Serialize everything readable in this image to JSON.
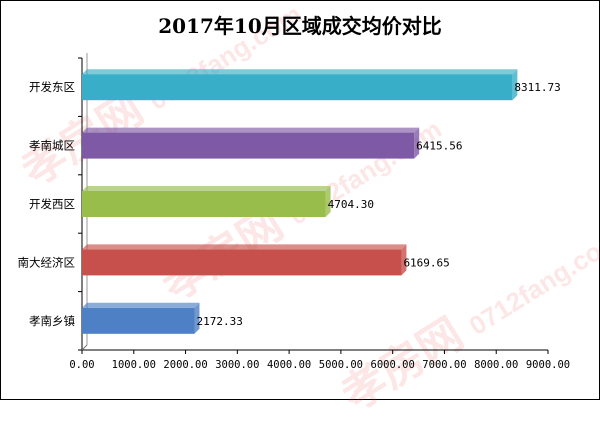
{
  "chart_data": {
    "type": "bar",
    "orientation": "horizontal",
    "title": "2017年10月区域成交均价对比",
    "categories": [
      "开发东区",
      "孝南城区",
      "开发西区",
      "南大经济区",
      "孝南乡镇"
    ],
    "values": [
      8311.73,
      6415.56,
      4704.3,
      6169.65,
      2172.33
    ],
    "value_labels": [
      "8311.73",
      "6415.56",
      "4704.30",
      "6169.65",
      "2172.33"
    ],
    "colors": [
      "#38aec8",
      "#7e5aa6",
      "#98bd4a",
      "#c8504c",
      "#4d80c4"
    ],
    "xlim": [
      0,
      9000
    ],
    "xticks": [
      0,
      1000,
      2000,
      3000,
      4000,
      5000,
      6000,
      7000,
      8000,
      9000
    ],
    "xtick_labels": [
      "0.00",
      "1000.00",
      "2000.00",
      "3000.00",
      "4000.00",
      "5000.00",
      "6000.00",
      "7000.00",
      "8000.00",
      "9000.00"
    ],
    "grid": false,
    "legend": "none"
  },
  "watermark": {
    "text": "孝房网",
    "subtext": "0712fang.com"
  }
}
